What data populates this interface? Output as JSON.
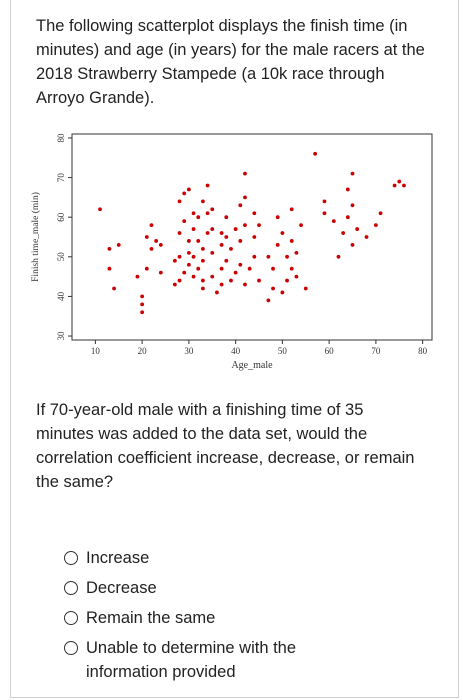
{
  "question": {
    "intro": "The following scatterplot displays the finish time (in minutes) and age (in years) for the male racers at the 2018 Strawberry Stampede (a 10k race through Arroyo Grande).",
    "prompt": "If 70-year-old male with a finishing time of 35 minutes was added to the data set, would the correlation coefficient increase, decrease, or remain the same?"
  },
  "options": [
    {
      "label": "Increase"
    },
    {
      "label": "Decrease"
    },
    {
      "label": "Remain the same"
    },
    {
      "label": "Unable to determine with the information provided"
    }
  ],
  "colors": {
    "point": "#cc0000",
    "axis": "#333333"
  },
  "chart_data": {
    "type": "scatter",
    "xlabel": "Age_male",
    "ylabel": "Finish time_male (min)",
    "xlim": [
      5,
      82
    ],
    "ylim": [
      29,
      81
    ],
    "xticks": [
      10,
      20,
      30,
      40,
      50,
      60,
      70,
      80
    ],
    "yticks": [
      30,
      40,
      50,
      60,
      70,
      80
    ],
    "grid": false,
    "points": [
      [
        11,
        62
      ],
      [
        13,
        47
      ],
      [
        13,
        52
      ],
      [
        14,
        42
      ],
      [
        15,
        53
      ],
      [
        19,
        45
      ],
      [
        20,
        36
      ],
      [
        20,
        38
      ],
      [
        20,
        40
      ],
      [
        21,
        47
      ],
      [
        21,
        55
      ],
      [
        22,
        52
      ],
      [
        22,
        58
      ],
      [
        23,
        54
      ],
      [
        24,
        53
      ],
      [
        24,
        46
      ],
      [
        27,
        43
      ],
      [
        27,
        49
      ],
      [
        28,
        44
      ],
      [
        28,
        50
      ],
      [
        28,
        56
      ],
      [
        28,
        64
      ],
      [
        29,
        46
      ],
      [
        29,
        59
      ],
      [
        29,
        66
      ],
      [
        30,
        48
      ],
      [
        30,
        51
      ],
      [
        30,
        54
      ],
      [
        30,
        67
      ],
      [
        31,
        45
      ],
      [
        31,
        50
      ],
      [
        31,
        57
      ],
      [
        31,
        61
      ],
      [
        32,
        47
      ],
      [
        32,
        54
      ],
      [
        32,
        60
      ],
      [
        33,
        42
      ],
      [
        33,
        44
      ],
      [
        33,
        49
      ],
      [
        33,
        52
      ],
      [
        33,
        64
      ],
      [
        34,
        56
      ],
      [
        34,
        61
      ],
      [
        34,
        68
      ],
      [
        35,
        45
      ],
      [
        35,
        51
      ],
      [
        35,
        57
      ],
      [
        35,
        62
      ],
      [
        36,
        41
      ],
      [
        37,
        43
      ],
      [
        37,
        47
      ],
      [
        37,
        53
      ],
      [
        37,
        56
      ],
      [
        38,
        49
      ],
      [
        38,
        55
      ],
      [
        38,
        60
      ],
      [
        39,
        44
      ],
      [
        39,
        52
      ],
      [
        40,
        46
      ],
      [
        40,
        57
      ],
      [
        41,
        48
      ],
      [
        41,
        54
      ],
      [
        41,
        63
      ],
      [
        42,
        43
      ],
      [
        42,
        58
      ],
      [
        42,
        65
      ],
      [
        42,
        71
      ],
      [
        43,
        47
      ],
      [
        44,
        50
      ],
      [
        44,
        55
      ],
      [
        44,
        61
      ],
      [
        45,
        44
      ],
      [
        45,
        58
      ],
      [
        47,
        39
      ],
      [
        47,
        50
      ],
      [
        48,
        42
      ],
      [
        48,
        47
      ],
      [
        49,
        53
      ],
      [
        49,
        60
      ],
      [
        50,
        41
      ],
      [
        50,
        56
      ],
      [
        51,
        44
      ],
      [
        51,
        50
      ],
      [
        52,
        47
      ],
      [
        52,
        54
      ],
      [
        52,
        62
      ],
      [
        53,
        45
      ],
      [
        53,
        51
      ],
      [
        54,
        58
      ],
      [
        55,
        42
      ],
      [
        57,
        76
      ],
      [
        59,
        61
      ],
      [
        59,
        64
      ],
      [
        61,
        59
      ],
      [
        62,
        50
      ],
      [
        63,
        56
      ],
      [
        64,
        60
      ],
      [
        64,
        67
      ],
      [
        65,
        71
      ],
      [
        65,
        53
      ],
      [
        65,
        63
      ],
      [
        66,
        57
      ],
      [
        68,
        55
      ],
      [
        70,
        58
      ],
      [
        71,
        61
      ],
      [
        74,
        68
      ],
      [
        75,
        69
      ],
      [
        76,
        68
      ]
    ]
  }
}
